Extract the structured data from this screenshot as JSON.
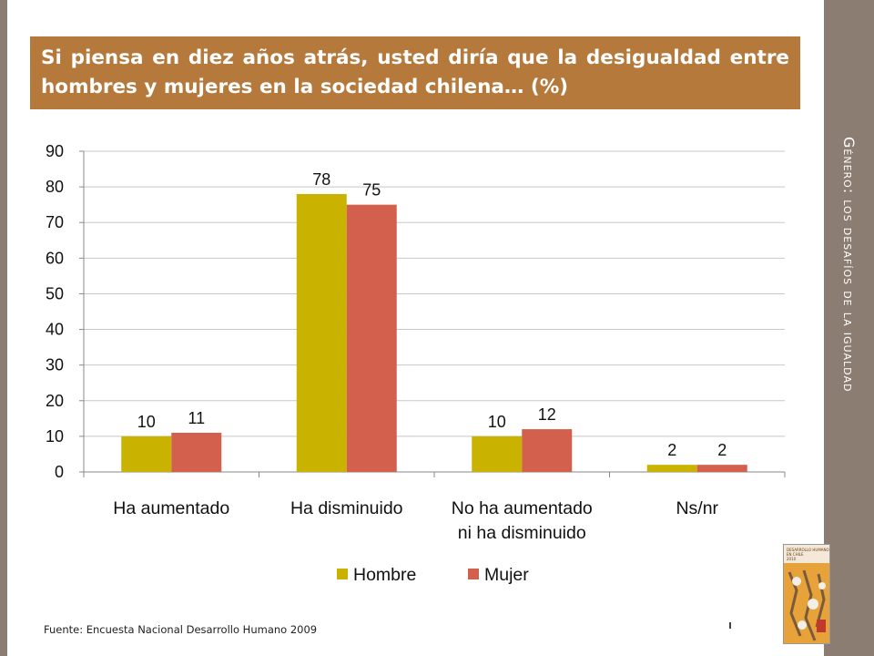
{
  "title": "Si piensa en diez años atrás, usted diría que la desigualdad entre hombres y mujeres en la sociedad chilena… (%)",
  "side_title": "Género: los desafíos de la igualdad",
  "source": "Fuente: Encuesta Nacional Desarrollo Humano 2009",
  "cover": {
    "title": "DESARROLLO HUMANO EN CHILE",
    "year": "2010"
  },
  "colors": {
    "hombre": "#c9b200",
    "mujer": "#d2604c",
    "title_bg": "#b5793b",
    "side_band": "#8c7d72"
  },
  "chart_data": {
    "type": "bar",
    "categories": [
      [
        "Ha aumentado"
      ],
      [
        "Ha disminuido"
      ],
      [
        "No ha aumentado",
        "ni ha disminuido"
      ],
      [
        "Ns/nr"
      ]
    ],
    "series": [
      {
        "name": "Hombre",
        "values": [
          10,
          78,
          10,
          2
        ],
        "labels": [
          "10",
          "78",
          "10",
          "2"
        ]
      },
      {
        "name": "Mujer",
        "values": [
          11,
          75,
          12,
          2
        ],
        "labels": [
          "11",
          "75",
          "12",
          "2"
        ]
      }
    ],
    "ylim": [
      0,
      90
    ],
    "yticks": [
      0,
      10,
      20,
      30,
      40,
      50,
      60,
      70,
      80,
      90
    ],
    "grid": true,
    "legend": "bottom"
  }
}
